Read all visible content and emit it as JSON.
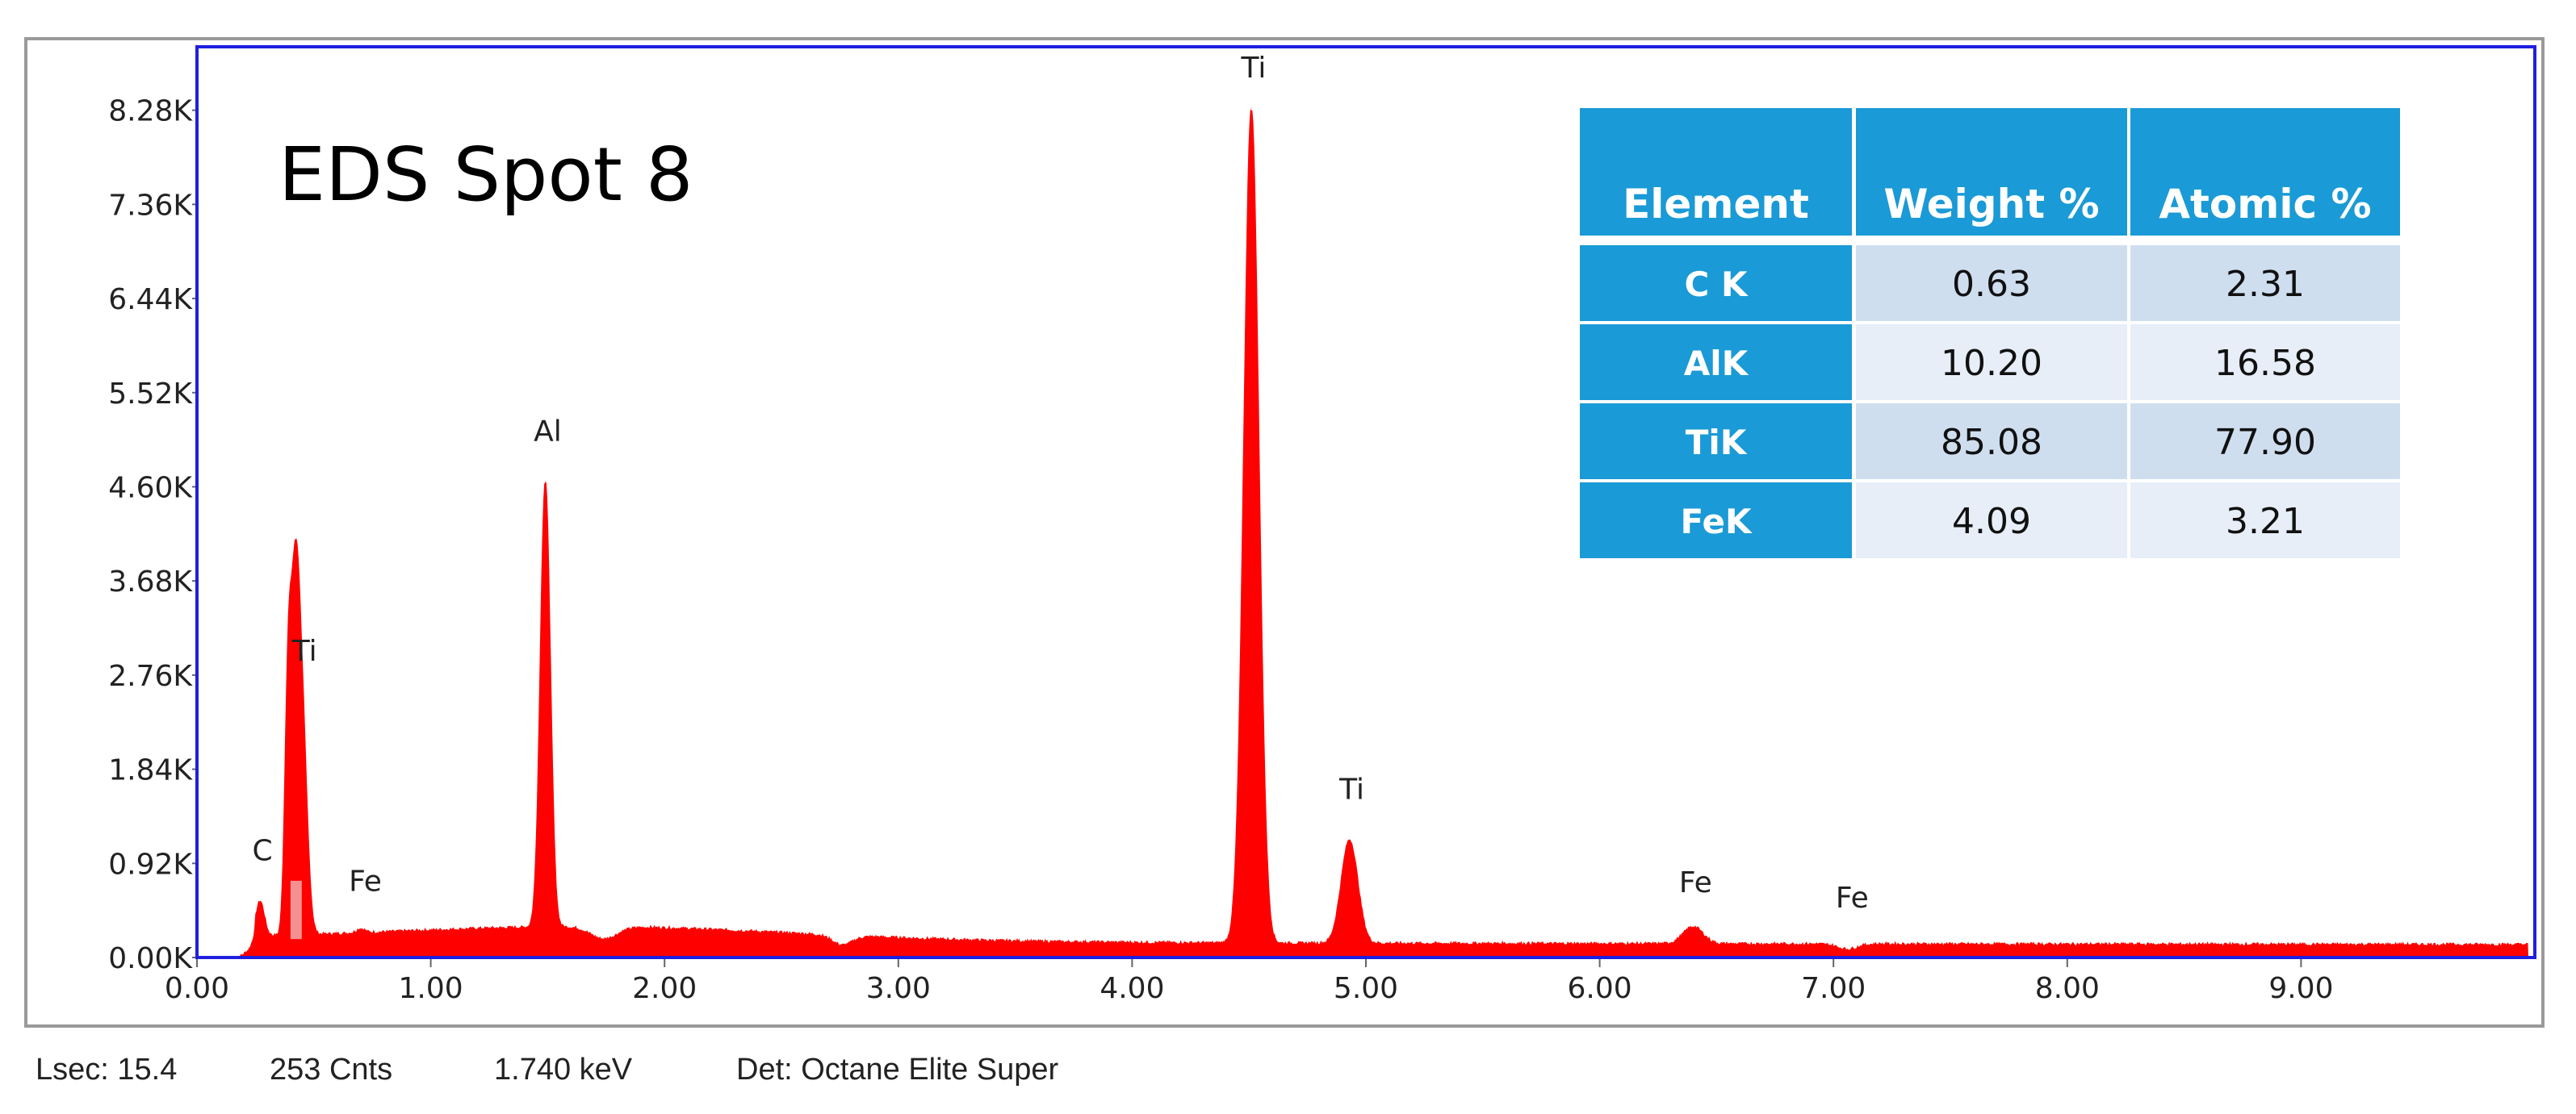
{
  "colors": {
    "spectrum": "#ff0000",
    "plot_border": "#1f1fe0",
    "table_header": "#1a9ad6",
    "table_row_dark": "#cfdeef",
    "table_row_light": "#e7eef8",
    "frame": "#9a9a9a"
  },
  "status": {
    "lsec": "Lsec: 15.4",
    "counts": "253 Cnts",
    "kev": "1.740 keV",
    "detector": "Det: Octane Elite Super"
  },
  "table": {
    "headers": [
      "Element",
      "Weight %",
      "Atomic %"
    ],
    "rows": [
      [
        "C K",
        "0.63",
        "2.31"
      ],
      [
        "AlK",
        "10.20",
        "16.58"
      ],
      [
        "TiK",
        "85.08",
        "77.90"
      ],
      [
        "FeK",
        "4.09",
        "3.21"
      ]
    ]
  },
  "chart_data": {
    "type": "area",
    "title": "EDS Spot 8",
    "xlabel": "",
    "ylabel": "",
    "xlim": [
      0,
      10.0
    ],
    "ylim": [
      0,
      8.9
    ],
    "x_unit": "keV",
    "y_unit": "K counts",
    "x_ticks": [
      "0.00",
      "1.00",
      "2.00",
      "3.00",
      "4.00",
      "5.00",
      "6.00",
      "7.00",
      "8.00",
      "9.00"
    ],
    "x_tick_values": [
      0,
      1,
      2,
      3,
      4,
      5,
      6,
      7,
      8,
      9
    ],
    "y_ticks": [
      "0.00K",
      "0.92K",
      "1.84K",
      "2.76K",
      "3.68K",
      "4.60K",
      "5.52K",
      "6.44K",
      "7.36K",
      "8.28K"
    ],
    "y_tick_values": [
      0,
      0.92,
      1.84,
      2.76,
      3.68,
      4.6,
      5.52,
      6.44,
      7.36,
      8.28
    ],
    "series": [
      {
        "peaks": [
          {
            "x": 0.27,
            "y": 0.55
          },
          {
            "x": 0.39,
            "y": 2.5
          },
          {
            "x": 0.42,
            "y": 3.1
          },
          {
            "x": 0.45,
            "y": 2.2
          },
          {
            "x": 0.7,
            "y": 0.28
          },
          {
            "x": 1.49,
            "y": 4.65
          },
          {
            "x": 1.74,
            "y": 0.18
          },
          {
            "x": 2.76,
            "y": 0.12
          },
          {
            "x": 4.51,
            "y": 8.3
          },
          {
            "x": 4.93,
            "y": 1.15
          },
          {
            "x": 6.4,
            "y": 0.3
          },
          {
            "x": 7.06,
            "y": 0.08
          }
        ]
      }
    ],
    "peak_labels": [
      {
        "label": "C",
        "x": 0.28,
        "y": 0.95
      },
      {
        "label": "Ti",
        "x": 0.46,
        "y": 2.9
      },
      {
        "label": "Fe",
        "x": 0.72,
        "y": 0.65
      },
      {
        "label": "Al",
        "x": 1.5,
        "y": 5.05
      },
      {
        "label": "Ti",
        "x": 4.52,
        "y": 8.6
      },
      {
        "label": "Ti",
        "x": 4.94,
        "y": 1.55
      },
      {
        "label": "Fe",
        "x": 6.41,
        "y": 0.64
      },
      {
        "label": "Fe",
        "x": 7.08,
        "y": 0.49
      }
    ],
    "grid": false,
    "legend": "none"
  }
}
